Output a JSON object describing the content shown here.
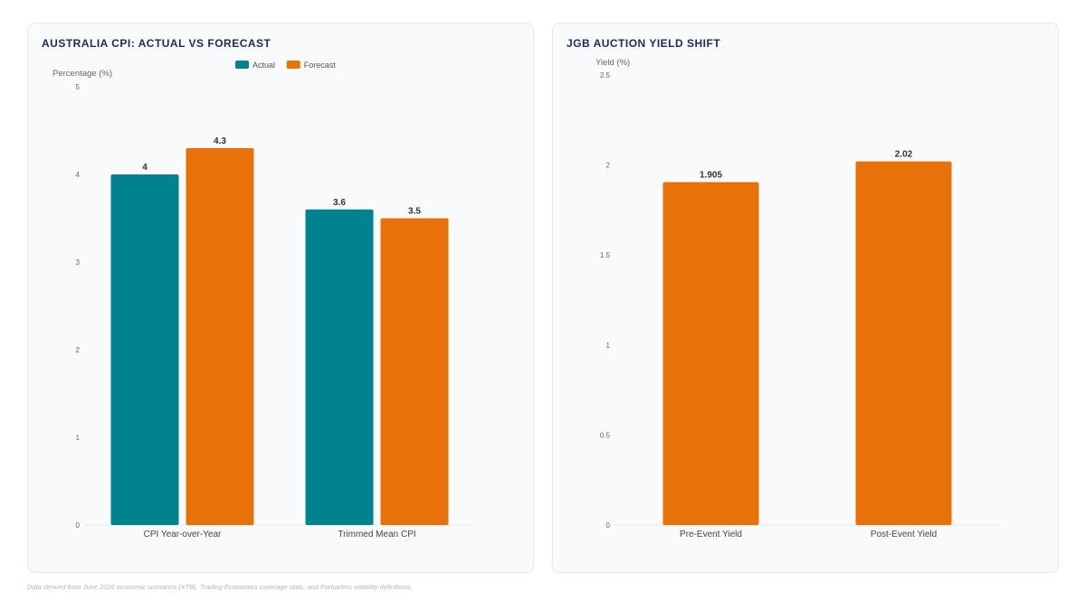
{
  "colors": {
    "actual": "#00838f",
    "forecast": "#e8710a",
    "grid": "#e5e7eb"
  },
  "chart_data": [
    {
      "type": "bar",
      "title": "AUSTRALIA CPI: ACTUAL VS FORECAST",
      "ylabel": "Percentage (%)",
      "xlabel": "",
      "categories": [
        "CPI Year-over-Year",
        "Trimmed Mean CPI"
      ],
      "series": [
        {
          "name": "Actual",
          "values": [
            4,
            3.6
          ],
          "labels": [
            "4",
            "3.6"
          ],
          "color": "#00838f"
        },
        {
          "name": "Forecast",
          "values": [
            4.3,
            3.5
          ],
          "labels": [
            "4.3",
            "3.5"
          ],
          "color": "#e8710a"
        }
      ],
      "ylim": [
        0,
        5
      ],
      "yticks": [
        "0",
        "1",
        "2",
        "3",
        "4",
        "5"
      ],
      "legend_position": "top-center",
      "grid": false
    },
    {
      "type": "bar",
      "title": "JGB AUCTION YIELD SHIFT",
      "ylabel": "Yield (%)",
      "xlabel": "",
      "categories": [
        "Pre-Event Yield",
        "Post-Event Yield"
      ],
      "series": [
        {
          "values": [
            1.905,
            2.02
          ],
          "labels": [
            "1.905",
            "2.02"
          ],
          "color": "#e8710a"
        }
      ],
      "ylim": [
        0,
        2.5
      ],
      "yticks": [
        "0",
        "0.5",
        "1",
        "1.5",
        "2",
        "2.5"
      ],
      "grid": false
    }
  ],
  "footnote": "Data derived from June 2026 economic scenarios (XTB), Trading Economics coverage stats, and Fortraders volatility definitions."
}
